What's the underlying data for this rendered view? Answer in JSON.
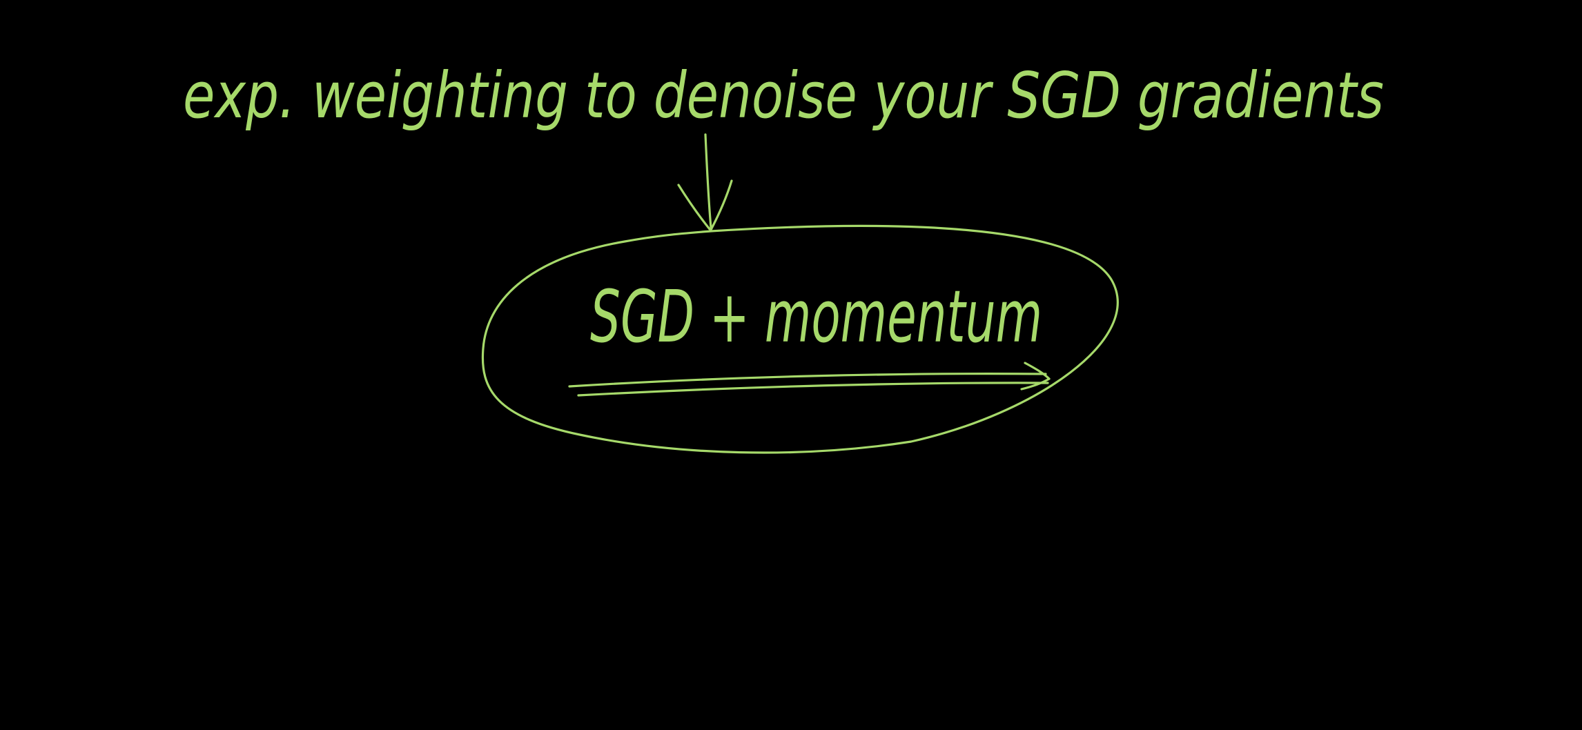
{
  "canvas": {
    "background_color": "#000000",
    "ink_color": "#a6d96a"
  },
  "annotation": {
    "top_line": "exp. weighting to denoise your SGD gradients",
    "center_label": "SGD + momentum"
  }
}
